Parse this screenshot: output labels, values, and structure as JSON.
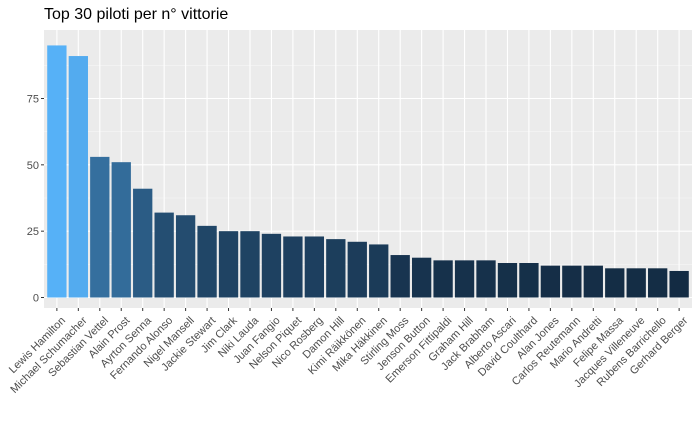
{
  "chart_data": {
    "type": "bar",
    "title": "Top 30 piloti per n° vittorie",
    "xlabel": "",
    "ylabel": "",
    "ylim": [
      0,
      100
    ],
    "yticks": [
      0,
      25,
      50,
      75
    ],
    "grid": true,
    "legend": "none",
    "categories": [
      "Lewis Hamilton",
      "Michael Schumacher",
      "Sebastian Vettel",
      "Alain Prost",
      "Ayrton Senna",
      "Fernando Alonso",
      "Nigel Mansell",
      "Jackie Stewart",
      "Jim Clark",
      "Niki Lauda",
      "Juan Fangio",
      "Nelson Piquet",
      "Nico Rosberg",
      "Damon Hill",
      "Kimi Räikkönen",
      "Mika Häkkinen",
      "Stirling Moss",
      "Jenson Button",
      "Emerson Fittipaldi",
      "Graham Hill",
      "Jack Brabham",
      "Alberto Ascari",
      "David Coulthard",
      "Alan Jones",
      "Carlos Reutemann",
      "Mario Andretti",
      "Felipe Massa",
      "Jacques Villeneuve",
      "Rubens Barrichello",
      "Gerhard Berger"
    ],
    "values": [
      95,
      91,
      53,
      51,
      41,
      32,
      31,
      27,
      25,
      25,
      24,
      23,
      23,
      22,
      21,
      20,
      16,
      15,
      14,
      14,
      14,
      13,
      13,
      12,
      12,
      12,
      11,
      11,
      11,
      10
    ],
    "colors": {
      "low": "#132B43",
      "high": "#56B1F7",
      "panel_background": "#EBEBEB",
      "grid_major": "#FFFFFF",
      "grid_minor": "#F5F5F5",
      "tick_text": "#4D4D4D"
    }
  }
}
